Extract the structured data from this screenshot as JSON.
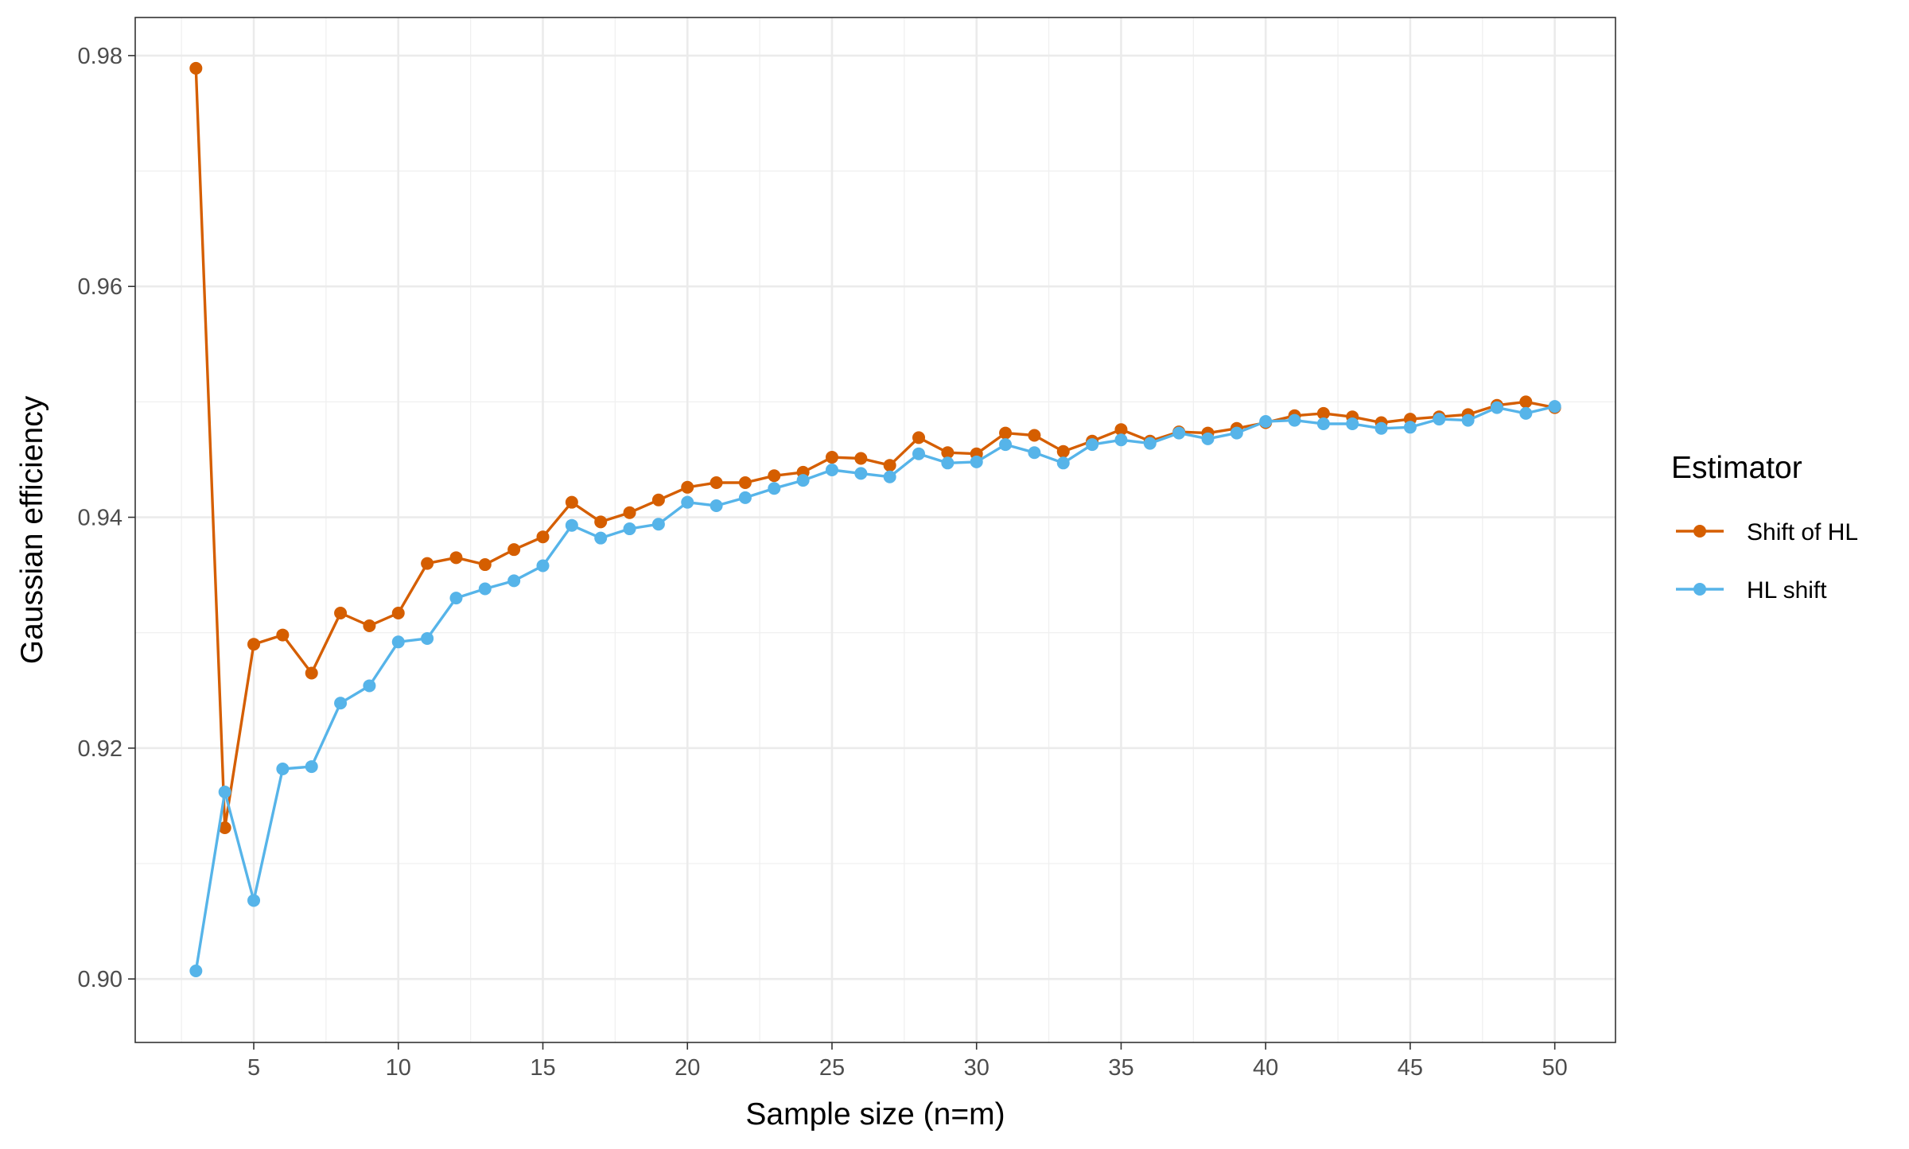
{
  "chart_data": {
    "type": "line",
    "title": "",
    "xlabel": "Sample size (n=m)",
    "ylabel": "Gaussian efficiency",
    "xlim": [
      0.9,
      52.1
    ],
    "ylim": [
      0.8945,
      0.9833
    ],
    "xticks": [
      5,
      10,
      15,
      20,
      25,
      30,
      35,
      40,
      45,
      50
    ],
    "yticks": [
      0.9,
      0.92,
      0.94,
      0.96,
      0.98
    ],
    "ytick_labels": [
      "0.90",
      "0.92",
      "0.94",
      "0.96",
      "0.98"
    ],
    "grid": true,
    "legend": {
      "title": "Estimator",
      "position": "right"
    },
    "x": [
      3,
      4,
      5,
      6,
      7,
      8,
      9,
      10,
      11,
      12,
      13,
      14,
      15,
      16,
      17,
      18,
      19,
      20,
      21,
      22,
      23,
      24,
      25,
      26,
      27,
      28,
      29,
      30,
      31,
      32,
      33,
      34,
      35,
      36,
      37,
      38,
      39,
      40,
      41,
      42,
      43,
      44,
      45,
      46,
      47,
      48,
      49,
      50
    ],
    "series": [
      {
        "name": "Shift of HL",
        "color": "#D55E00",
        "values": [
          0.9789,
          0.9131,
          0.929,
          0.9298,
          0.9265,
          0.9317,
          0.9306,
          0.9317,
          0.936,
          0.9365,
          0.9359,
          0.9372,
          0.9383,
          0.9413,
          0.9396,
          0.9404,
          0.9415,
          0.9426,
          0.943,
          0.943,
          0.9436,
          0.9439,
          0.9452,
          0.9451,
          0.9445,
          0.9469,
          0.9456,
          0.9455,
          0.9473,
          0.9471,
          0.9457,
          0.9466,
          0.9476,
          0.9466,
          0.9474,
          0.9473,
          0.9477,
          0.9482,
          0.9488,
          0.949,
          0.9487,
          0.9482,
          0.9485,
          0.9487,
          0.9489,
          0.9497,
          0.95,
          0.9495
        ]
      },
      {
        "name": "HL shift",
        "color": "#56B4E9",
        "values": [
          0.9007,
          0.9162,
          0.9068,
          0.9182,
          0.9184,
          0.9239,
          0.9254,
          0.9292,
          0.9295,
          0.933,
          0.9338,
          0.9345,
          0.9358,
          0.9393,
          0.9382,
          0.939,
          0.9394,
          0.9413,
          0.941,
          0.9417,
          0.9425,
          0.9432,
          0.9441,
          0.9438,
          0.9435,
          0.9455,
          0.9447,
          0.9448,
          0.9463,
          0.9456,
          0.9447,
          0.9463,
          0.9467,
          0.9464,
          0.9473,
          0.9468,
          0.9473,
          0.9483,
          0.9484,
          0.9481,
          0.9481,
          0.9477,
          0.9478,
          0.9485,
          0.9484,
          0.9495,
          0.949,
          0.9496
        ]
      }
    ]
  }
}
